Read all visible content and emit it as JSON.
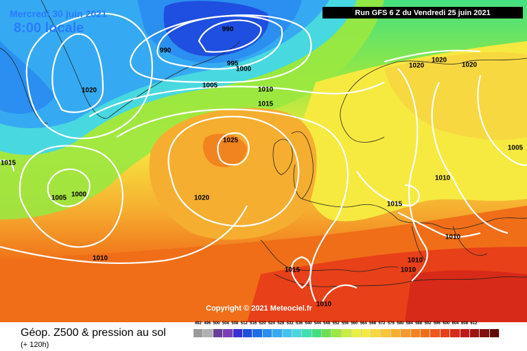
{
  "header": {
    "date": "Mercredi 30 juin 2021",
    "time": "8:00 locale",
    "run": "Run GFS 6 Z du Vendredi 25 juin 2021"
  },
  "copyright": "Copyright © 2021 Meteociel.fr",
  "footer": {
    "title": "Géop. Z500 & pression au sol",
    "subtitle": "(+ 120h)"
  },
  "isobar_labels": [
    "990",
    "990",
    "995",
    "1000",
    "1020",
    "1005",
    "1010",
    "1015",
    "1025",
    "1015",
    "1005",
    "1000",
    "1020",
    "1010",
    "1020",
    "1020",
    "1020",
    "1005",
    "1010",
    "1015",
    "1010",
    "1010",
    "1010",
    "1015",
    "1010"
  ],
  "scale_values": [
    "492",
    "496",
    "500",
    "504",
    "508",
    "512",
    "516",
    "520",
    "524",
    "528",
    "532",
    "536",
    "540",
    "544",
    "548",
    "552",
    "556",
    "560",
    "564",
    "568",
    "572",
    "576",
    "580",
    "584",
    "588",
    "592",
    "596",
    "600",
    "604",
    "608",
    "612"
  ],
  "scale_colors": [
    "#9a9a9a",
    "#b0b0b0",
    "#6a3d9a",
    "#7b3fb5",
    "#3a2fd0",
    "#1f4fe0",
    "#1e6fe8",
    "#2a8ff0",
    "#35aaf2",
    "#40c4f0",
    "#48d8e0",
    "#3fe0b0",
    "#43e080",
    "#6ae050",
    "#9ae840",
    "#c6ee40",
    "#e8f040",
    "#f6ea40",
    "#f8d840",
    "#f8c438",
    "#f6ae30",
    "#f49a28",
    "#f28420",
    "#f06e18",
    "#ee5818",
    "#e84018",
    "#d82a18",
    "#c01818",
    "#a01010",
    "#801010",
    "#600808"
  ]
}
